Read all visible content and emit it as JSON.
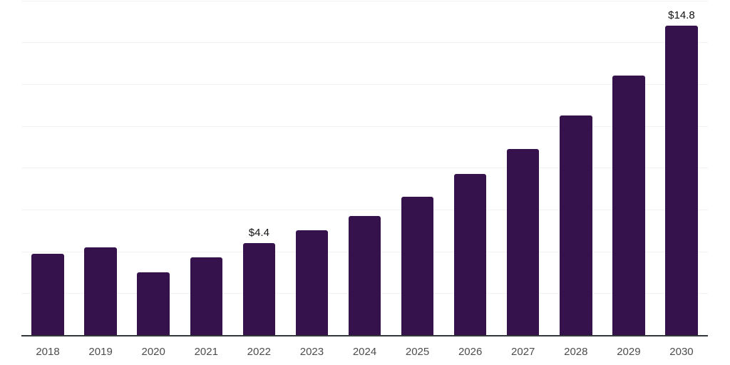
{
  "chart_data": {
    "type": "bar",
    "title": "",
    "xlabel": "",
    "ylabel": "",
    "categories": [
      "2018",
      "2019",
      "2020",
      "2021",
      "2022",
      "2023",
      "2024",
      "2025",
      "2026",
      "2027",
      "2028",
      "2029",
      "2030"
    ],
    "values": [
      3.9,
      4.2,
      3.0,
      3.7,
      4.4,
      5.0,
      5.7,
      6.6,
      7.7,
      8.9,
      10.5,
      12.4,
      14.8
    ],
    "unit_prefix": "$",
    "annotations": [
      {
        "category": "2022",
        "text": "$4.4"
      },
      {
        "category": "2030",
        "text": "$14.8"
      }
    ],
    "ylim": [
      0,
      16
    ],
    "grid_step": 2,
    "grid": true,
    "legend": "none",
    "y_axis_labels_visible": false,
    "colors": {
      "bar": "#35124b",
      "gridline": "#f2f2f2",
      "axis_line": "#35383b",
      "tick_label": "#4d4d4d",
      "value_label": "#111111",
      "background": "#ffffff"
    }
  }
}
